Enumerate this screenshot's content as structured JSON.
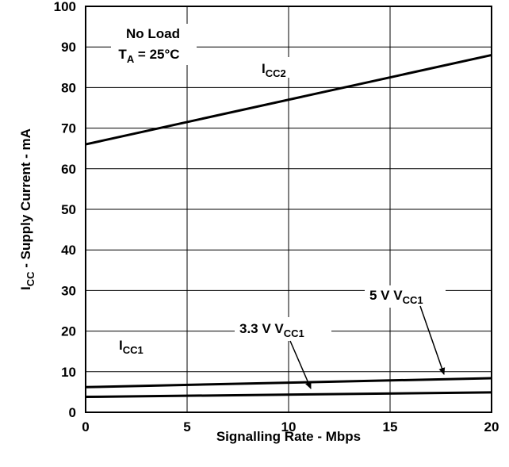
{
  "chart_data": {
    "type": "line",
    "xlabel": "Signalling Rate - Mbps",
    "ylabel": {
      "main": "I",
      "sub": "CC",
      "rest": " - Supply Current - mA"
    },
    "xlim": [
      0,
      20
    ],
    "ylim": [
      0,
      100
    ],
    "xticks": [
      0,
      5,
      10,
      15,
      20
    ],
    "yticks": [
      0,
      10,
      20,
      30,
      40,
      50,
      60,
      70,
      80,
      90,
      100
    ],
    "grid": true,
    "series": [
      {
        "name": "ICC2",
        "x": [
          0,
          20
        ],
        "y": [
          66,
          88
        ]
      },
      {
        "name": "5 V VCC1",
        "x": [
          0,
          20
        ],
        "y": [
          6.2,
          8.4
        ]
      },
      {
        "name": "3.3 V VCC1",
        "x": [
          0,
          20
        ],
        "y": [
          3.8,
          4.9
        ]
      }
    ],
    "annotations": {
      "conditions_line1": "No Load",
      "conditions_line2": {
        "main": "T",
        "sub": "A",
        "rest": " = 25°C"
      },
      "icc2_label": {
        "main": "I",
        "sub": "CC2"
      },
      "icc1_label": {
        "main": "I",
        "sub": "CC1"
      },
      "vcc5_label": {
        "main": "5 V V",
        "sub": "CC1"
      },
      "vcc33_label": {
        "main": "3.3 V V",
        "sub": "CC1"
      }
    }
  }
}
